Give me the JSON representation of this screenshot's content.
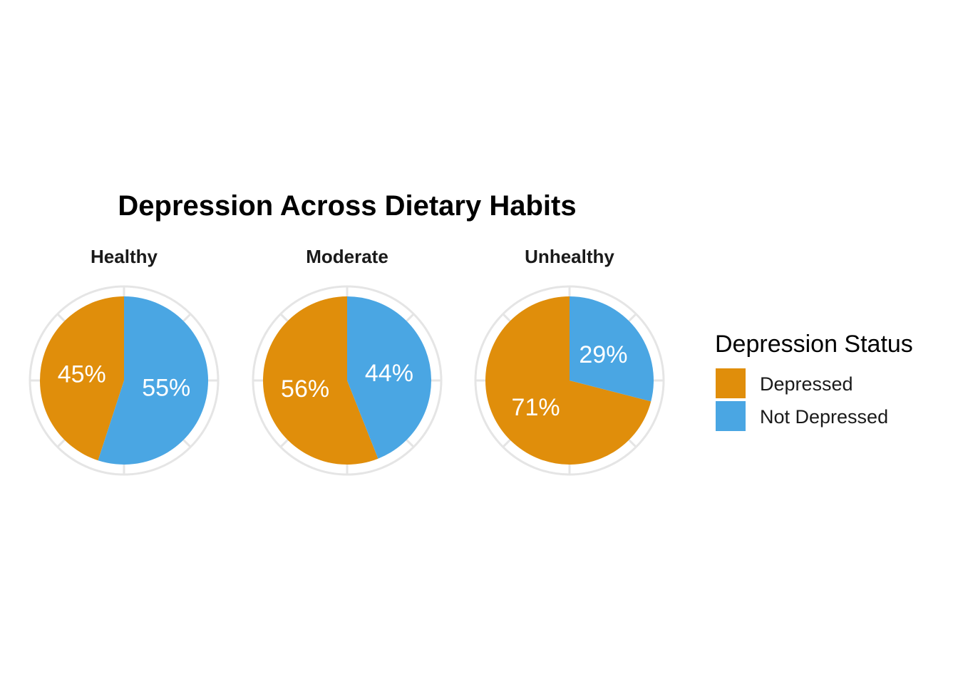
{
  "chart_data": {
    "type": "pie",
    "title": "Depression Across Dietary Habits",
    "legend": {
      "title": "Depression Status",
      "position": "right",
      "entries": [
        {
          "label": "Depressed",
          "color": "#E08E0B"
        },
        {
          "label": "Not Depressed",
          "color": "#4AA6E3"
        }
      ]
    },
    "categories": [
      "Depressed",
      "Not Depressed"
    ],
    "facets": [
      {
        "name": "Healthy",
        "slices": [
          {
            "category": "Depressed",
            "value": 45,
            "label": "45%"
          },
          {
            "category": "Not Depressed",
            "value": 55,
            "label": "55%"
          }
        ]
      },
      {
        "name": "Moderate",
        "slices": [
          {
            "category": "Depressed",
            "value": 56,
            "label": "56%"
          },
          {
            "category": "Not Depressed",
            "value": 44,
            "label": "44%"
          }
        ]
      },
      {
        "name": "Unhealthy",
        "slices": [
          {
            "category": "Depressed",
            "value": 71,
            "label": "71%"
          },
          {
            "category": "Not Depressed",
            "value": 29,
            "label": "29%"
          }
        ]
      }
    ],
    "grid": true,
    "grid_color": "#E5E5E5"
  }
}
